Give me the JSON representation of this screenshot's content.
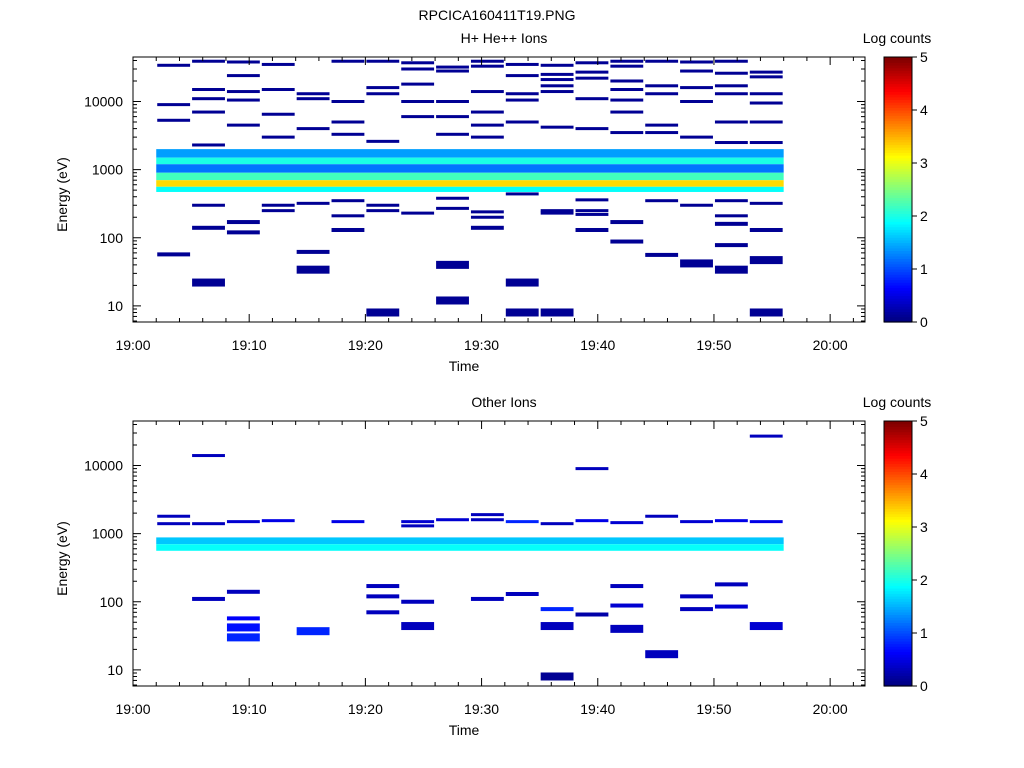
{
  "figure_title": "RPCICA160411T19.PNG",
  "chart_data": [
    {
      "type": "heatmap",
      "title": "H+ He++ Ions",
      "xlabel": "Time",
      "ylabel": "Energy (eV)",
      "colorbar_label": "Log counts",
      "x_ticks": [
        "19:00",
        "19:10",
        "19:20",
        "19:30",
        "19:40",
        "19:50",
        "20:00"
      ],
      "y_ticks": [
        "10",
        "100",
        "1000",
        "10000"
      ],
      "y_scale": "log",
      "ylim": [
        5.8,
        45000
      ],
      "xlim_minutes": [
        0,
        63
      ],
      "colorbar_ticks": [
        "0",
        "1",
        "2",
        "3",
        "4",
        "5"
      ],
      "zlim": [
        0,
        5
      ],
      "bands": [
        {
          "e0": 1500,
          "e1": 2000,
          "level": 1.4
        },
        {
          "e0": 1200,
          "e1": 1500,
          "level": 2.0
        },
        {
          "e0": 900,
          "e1": 1200,
          "level": 1.2
        },
        {
          "e0": 700,
          "e1": 900,
          "level": 2.2
        },
        {
          "e0": 560,
          "e1": 700,
          "level": 3.3
        },
        {
          "e0": 470,
          "e1": 560,
          "level": 1.9
        }
      ],
      "bins": [
        {
          "t": 3.5,
          "e": 34000
        },
        {
          "t": 3.5,
          "e": 9000
        },
        {
          "t": 3.5,
          "e": 5300
        },
        {
          "t": 3.5,
          "e": 57
        },
        {
          "t": 6.5,
          "e": 39000
        },
        {
          "t": 6.5,
          "e": 15000
        },
        {
          "t": 6.5,
          "e": 11000
        },
        {
          "t": 6.5,
          "e": 7000
        },
        {
          "t": 6.5,
          "e": 2300
        },
        {
          "t": 6.5,
          "e": 300
        },
        {
          "t": 6.5,
          "e": 140
        },
        {
          "t": 6.5,
          "e": 22
        },
        {
          "t": 9.5,
          "e": 38000
        },
        {
          "t": 9.5,
          "e": 24000
        },
        {
          "t": 9.5,
          "e": 14000
        },
        {
          "t": 9.5,
          "e": 10500
        },
        {
          "t": 9.5,
          "e": 4500
        },
        {
          "t": 9.5,
          "e": 170
        },
        {
          "t": 9.5,
          "e": 120
        },
        {
          "t": 12.5,
          "e": 35000
        },
        {
          "t": 12.5,
          "e": 15000
        },
        {
          "t": 12.5,
          "e": 6500
        },
        {
          "t": 12.5,
          "e": 3000
        },
        {
          "t": 12.5,
          "e": 300
        },
        {
          "t": 12.5,
          "e": 250
        },
        {
          "t": 15.5,
          "e": 13000
        },
        {
          "t": 15.5,
          "e": 11000
        },
        {
          "t": 15.5,
          "e": 4000
        },
        {
          "t": 15.5,
          "e": 320
        },
        {
          "t": 15.5,
          "e": 62
        },
        {
          "t": 15.5,
          "e": 34
        },
        {
          "t": 18.5,
          "e": 39000
        },
        {
          "t": 18.5,
          "e": 10000
        },
        {
          "t": 18.5,
          "e": 5000
        },
        {
          "t": 18.5,
          "e": 3300
        },
        {
          "t": 18.5,
          "e": 350
        },
        {
          "t": 18.5,
          "e": 210
        },
        {
          "t": 18.5,
          "e": 130
        },
        {
          "t": 21.5,
          "e": 39000
        },
        {
          "t": 21.5,
          "e": 16000
        },
        {
          "t": 21.5,
          "e": 13000
        },
        {
          "t": 21.5,
          "e": 2600
        },
        {
          "t": 21.5,
          "e": 300
        },
        {
          "t": 21.5,
          "e": 250
        },
        {
          "t": 21.5,
          "e": 8
        },
        {
          "t": 24.5,
          "e": 37000
        },
        {
          "t": 24.5,
          "e": 30000
        },
        {
          "t": 24.5,
          "e": 18000
        },
        {
          "t": 24.5,
          "e": 10000
        },
        {
          "t": 24.5,
          "e": 6000
        },
        {
          "t": 24.5,
          "e": 230
        },
        {
          "t": 27.5,
          "e": 32000
        },
        {
          "t": 27.5,
          "e": 28000
        },
        {
          "t": 27.5,
          "e": 10000
        },
        {
          "t": 27.5,
          "e": 6000
        },
        {
          "t": 27.5,
          "e": 3300
        },
        {
          "t": 27.5,
          "e": 380
        },
        {
          "t": 27.5,
          "e": 270
        },
        {
          "t": 27.5,
          "e": 40
        },
        {
          "t": 27.5,
          "e": 12
        },
        {
          "t": 30.5,
          "e": 39000
        },
        {
          "t": 30.5,
          "e": 33000
        },
        {
          "t": 30.5,
          "e": 14000
        },
        {
          "t": 30.5,
          "e": 7000
        },
        {
          "t": 30.5,
          "e": 4500
        },
        {
          "t": 30.5,
          "e": 3000
        },
        {
          "t": 30.5,
          "e": 240
        },
        {
          "t": 30.5,
          "e": 200
        },
        {
          "t": 30.5,
          "e": 140
        },
        {
          "t": 33.5,
          "e": 35000
        },
        {
          "t": 33.5,
          "e": 24000
        },
        {
          "t": 33.5,
          "e": 13000
        },
        {
          "t": 33.5,
          "e": 10500
        },
        {
          "t": 33.5,
          "e": 5000
        },
        {
          "t": 33.5,
          "e": 440
        },
        {
          "t": 33.5,
          "e": 22
        },
        {
          "t": 33.5,
          "e": 8
        },
        {
          "t": 36.5,
          "e": 34000
        },
        {
          "t": 36.5,
          "e": 25000
        },
        {
          "t": 36.5,
          "e": 21000
        },
        {
          "t": 36.5,
          "e": 17000
        },
        {
          "t": 36.5,
          "e": 14000
        },
        {
          "t": 36.5,
          "e": 4200
        },
        {
          "t": 36.5,
          "e": 250
        },
        {
          "t": 36.5,
          "e": 230
        },
        {
          "t": 36.5,
          "e": 8
        },
        {
          "t": 39.5,
          "e": 37000
        },
        {
          "t": 39.5,
          "e": 27000
        },
        {
          "t": 39.5,
          "e": 22000
        },
        {
          "t": 39.5,
          "e": 11000
        },
        {
          "t": 39.5,
          "e": 4000
        },
        {
          "t": 39.5,
          "e": 360
        },
        {
          "t": 39.5,
          "e": 250
        },
        {
          "t": 39.5,
          "e": 220
        },
        {
          "t": 39.5,
          "e": 130
        },
        {
          "t": 42.5,
          "e": 39000
        },
        {
          "t": 42.5,
          "e": 33000
        },
        {
          "t": 42.5,
          "e": 20000
        },
        {
          "t": 42.5,
          "e": 15000
        },
        {
          "t": 42.5,
          "e": 10500
        },
        {
          "t": 42.5,
          "e": 7000
        },
        {
          "t": 42.5,
          "e": 3500
        },
        {
          "t": 42.5,
          "e": 170
        },
        {
          "t": 42.5,
          "e": 88
        },
        {
          "t": 45.5,
          "e": 39000
        },
        {
          "t": 45.5,
          "e": 17000
        },
        {
          "t": 45.5,
          "e": 13000
        },
        {
          "t": 45.5,
          "e": 4500
        },
        {
          "t": 45.5,
          "e": 3500
        },
        {
          "t": 45.5,
          "e": 350
        },
        {
          "t": 45.5,
          "e": 56
        },
        {
          "t": 48.5,
          "e": 38000
        },
        {
          "t": 48.5,
          "e": 28000
        },
        {
          "t": 48.5,
          "e": 16000
        },
        {
          "t": 48.5,
          "e": 10000
        },
        {
          "t": 48.5,
          "e": 3000
        },
        {
          "t": 48.5,
          "e": 300
        },
        {
          "t": 48.5,
          "e": 42
        },
        {
          "t": 51.5,
          "e": 39000
        },
        {
          "t": 51.5,
          "e": 26000
        },
        {
          "t": 51.5,
          "e": 17000
        },
        {
          "t": 51.5,
          "e": 13000
        },
        {
          "t": 51.5,
          "e": 5000
        },
        {
          "t": 51.5,
          "e": 2500
        },
        {
          "t": 51.5,
          "e": 350
        },
        {
          "t": 51.5,
          "e": 210
        },
        {
          "t": 51.5,
          "e": 160
        },
        {
          "t": 51.5,
          "e": 78
        },
        {
          "t": 51.5,
          "e": 34
        },
        {
          "t": 54.5,
          "e": 27000
        },
        {
          "t": 54.5,
          "e": 23000
        },
        {
          "t": 54.5,
          "e": 13000
        },
        {
          "t": 54.5,
          "e": 9500
        },
        {
          "t": 54.5,
          "e": 5000
        },
        {
          "t": 54.5,
          "e": 2500
        },
        {
          "t": 54.5,
          "e": 320
        },
        {
          "t": 54.5,
          "e": 130
        },
        {
          "t": 54.5,
          "e": 47
        },
        {
          "t": 54.5,
          "e": 8
        }
      ]
    },
    {
      "type": "heatmap",
      "title": "Other Ions",
      "xlabel": "Time",
      "ylabel": "Energy (eV)",
      "colorbar_label": "Log counts",
      "x_ticks": [
        "19:00",
        "19:10",
        "19:20",
        "19:30",
        "19:40",
        "19:50",
        "20:00"
      ],
      "y_ticks": [
        "10",
        "100",
        "1000",
        "10000"
      ],
      "y_scale": "log",
      "ylim": [
        5.8,
        45000
      ],
      "xlim_minutes": [
        0,
        63
      ],
      "colorbar_ticks": [
        "0",
        "1",
        "2",
        "3",
        "4",
        "5"
      ],
      "zlim": [
        0,
        5
      ],
      "bands": [
        {
          "e0": 700,
          "e1": 880,
          "level": 1.6
        },
        {
          "e0": 560,
          "e1": 700,
          "level": 1.9
        }
      ],
      "bins": [
        {
          "t": 3.5,
          "e": 1800,
          "level": 0.3
        },
        {
          "t": 3.5,
          "e": 1400,
          "level": 0.3
        },
        {
          "t": 6.5,
          "e": 14000,
          "level": 0.3
        },
        {
          "t": 6.5,
          "e": 1400,
          "level": 0.3
        },
        {
          "t": 6.5,
          "e": 110,
          "level": 0.3
        },
        {
          "t": 9.5,
          "e": 1500,
          "level": 0.4
        },
        {
          "t": 9.5,
          "e": 140,
          "level": 0.3
        },
        {
          "t": 9.5,
          "e": 57,
          "level": 0.6
        },
        {
          "t": 9.5,
          "e": 42,
          "level": 0.7
        },
        {
          "t": 9.5,
          "e": 30,
          "level": 0.8
        },
        {
          "t": 12.5,
          "e": 1550,
          "level": 0.5
        },
        {
          "t": 15.5,
          "e": 37,
          "level": 0.8
        },
        {
          "t": 18.5,
          "e": 1500,
          "level": 0.5
        },
        {
          "t": 21.5,
          "e": 170,
          "level": 0.3
        },
        {
          "t": 21.5,
          "e": 120,
          "level": 0.3
        },
        {
          "t": 21.5,
          "e": 70,
          "level": 0.3
        },
        {
          "t": 24.5,
          "e": 1500,
          "level": 0.4
        },
        {
          "t": 24.5,
          "e": 1300,
          "level": 0.3
        },
        {
          "t": 24.5,
          "e": 100,
          "level": 0.3
        },
        {
          "t": 24.5,
          "e": 44,
          "level": 0.3
        },
        {
          "t": 27.5,
          "e": 1600,
          "level": 0.4
        },
        {
          "t": 30.5,
          "e": 1900,
          "level": 0.3
        },
        {
          "t": 30.5,
          "e": 1600,
          "level": 0.3
        },
        {
          "t": 30.5,
          "e": 110,
          "level": 0.3
        },
        {
          "t": 33.5,
          "e": 1500,
          "level": 0.8
        },
        {
          "t": 33.5,
          "e": 130,
          "level": 0.3
        },
        {
          "t": 36.5,
          "e": 1400,
          "level": 0.3
        },
        {
          "t": 36.5,
          "e": 78,
          "level": 0.8
        },
        {
          "t": 36.5,
          "e": 44,
          "level": 0.3
        },
        {
          "t": 36.5,
          "e": 8,
          "level": 0.1
        },
        {
          "t": 39.5,
          "e": 9000,
          "level": 0.3
        },
        {
          "t": 39.5,
          "e": 1550,
          "level": 0.5
        },
        {
          "t": 39.5,
          "e": 65,
          "level": 0.2
        },
        {
          "t": 42.5,
          "e": 1450,
          "level": 0.4
        },
        {
          "t": 42.5,
          "e": 170,
          "level": 0.3
        },
        {
          "t": 42.5,
          "e": 88,
          "level": 0.4
        },
        {
          "t": 42.5,
          "e": 40,
          "level": 0.3
        },
        {
          "t": 45.5,
          "e": 1800,
          "level": 0.3
        },
        {
          "t": 45.5,
          "e": 17,
          "level": 0.3
        },
        {
          "t": 48.5,
          "e": 1500,
          "level": 0.4
        },
        {
          "t": 48.5,
          "e": 120,
          "level": 0.3
        },
        {
          "t": 48.5,
          "e": 78,
          "level": 0.3
        },
        {
          "t": 51.5,
          "e": 1550,
          "level": 0.5
        },
        {
          "t": 51.5,
          "e": 180,
          "level": 0.3
        },
        {
          "t": 51.5,
          "e": 85,
          "level": 0.4
        },
        {
          "t": 54.5,
          "e": 27000,
          "level": 0.3
        },
        {
          "t": 54.5,
          "e": 1500,
          "level": 0.5
        },
        {
          "t": 54.5,
          "e": 44,
          "level": 0.4
        }
      ]
    }
  ]
}
